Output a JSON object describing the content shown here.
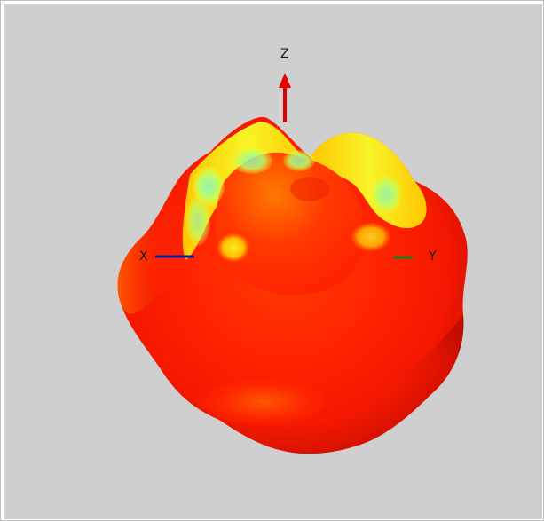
{
  "viewer": {
    "background_color": "#cfcfcf",
    "axes": {
      "z": {
        "label": "Z",
        "color": "#e00000"
      },
      "x": {
        "label": "X",
        "color": "#0a1f9a"
      },
      "y": {
        "label": "Y",
        "color": "#1f7a1f"
      }
    },
    "surface": {
      "type": "3D radiation pattern",
      "colors": {
        "dark": "#c81000",
        "mid": "#ff2a00",
        "light": "#ff7a00",
        "yellow": "#f7ff2a",
        "cyan": "#8ff0b8"
      }
    }
  }
}
